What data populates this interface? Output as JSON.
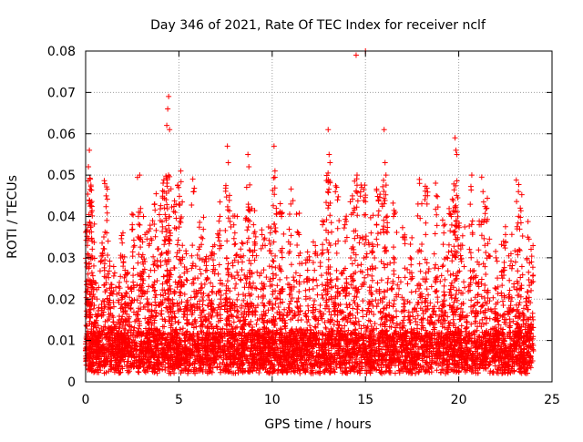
{
  "chart_data": {
    "type": "scatter",
    "title": "Day 346 of 2021, Rate Of TEC Index for receiver nclf",
    "xlabel": "GPS time / hours",
    "ylabel": "ROTI / TECUs",
    "xlim": [
      0,
      25
    ],
    "ylim": [
      0,
      0.08
    ],
    "x_ticks": [
      0,
      5,
      10,
      15,
      20,
      25
    ],
    "x_tick_labels": [
      "0",
      "5",
      "10",
      "15",
      "20",
      "25"
    ],
    "y_ticks": [
      0,
      0.01,
      0.02,
      0.03,
      0.04,
      0.05,
      0.06,
      0.07,
      0.08
    ],
    "y_tick_labels": [
      "0",
      "0.01",
      "0.02",
      "0.03",
      "0.04",
      "0.05",
      "0.06",
      "0.07",
      "0.08"
    ],
    "grid": true,
    "marker": "+",
    "series": [
      {
        "name": "ROTI",
        "color": "#ff0000",
        "points": [
          [
            0.1,
            0.033
          ],
          [
            0.15,
            0.052
          ],
          [
            0.2,
            0.056
          ],
          [
            0.25,
            0.049
          ],
          [
            0.3,
            0.041
          ],
          [
            0.35,
            0.034
          ],
          [
            0.5,
            0.024
          ],
          [
            0.7,
            0.018
          ],
          [
            0.9,
            0.031
          ],
          [
            1.1,
            0.045
          ],
          [
            1.3,
            0.028
          ],
          [
            1.5,
            0.022
          ],
          [
            1.8,
            0.015
          ],
          [
            2.0,
            0.036
          ],
          [
            2.2,
            0.026
          ],
          [
            2.5,
            0.038
          ],
          [
            2.9,
            0.05
          ],
          [
            3.1,
            0.04
          ],
          [
            3.4,
            0.033
          ],
          [
            3.7,
            0.043
          ],
          [
            4.0,
            0.039
          ],
          [
            4.2,
            0.046
          ],
          [
            4.35,
            0.062
          ],
          [
            4.4,
            0.066
          ],
          [
            4.45,
            0.069
          ],
          [
            4.5,
            0.061
          ],
          [
            4.8,
            0.041
          ],
          [
            5.0,
            0.043
          ],
          [
            5.1,
            0.051
          ],
          [
            5.4,
            0.031
          ],
          [
            5.8,
            0.046
          ],
          [
            6.2,
            0.035
          ],
          [
            6.5,
            0.027
          ],
          [
            6.8,
            0.031
          ],
          [
            7.2,
            0.04
          ],
          [
            7.6,
            0.057
          ],
          [
            7.65,
            0.053
          ],
          [
            8.0,
            0.036
          ],
          [
            8.4,
            0.029
          ],
          [
            8.7,
            0.055
          ],
          [
            8.75,
            0.052
          ],
          [
            9.0,
            0.038
          ],
          [
            9.5,
            0.033
          ],
          [
            9.9,
            0.036
          ],
          [
            10.1,
            0.057
          ],
          [
            10.15,
            0.051
          ],
          [
            10.5,
            0.04
          ],
          [
            11.0,
            0.043
          ],
          [
            11.4,
            0.036
          ],
          [
            11.9,
            0.027
          ],
          [
            12.3,
            0.031
          ],
          [
            12.7,
            0.038
          ],
          [
            13.0,
            0.061
          ],
          [
            13.05,
            0.055
          ],
          [
            13.1,
            0.053
          ],
          [
            13.5,
            0.044
          ],
          [
            13.9,
            0.038
          ],
          [
            14.3,
            0.045
          ],
          [
            14.5,
            0.079
          ],
          [
            14.55,
            0.05
          ],
          [
            14.8,
            0.047
          ],
          [
            15.0,
            0.08
          ],
          [
            15.3,
            0.036
          ],
          [
            15.7,
            0.044
          ],
          [
            16.0,
            0.061
          ],
          [
            16.05,
            0.053
          ],
          [
            16.1,
            0.05
          ],
          [
            16.6,
            0.041
          ],
          [
            17.0,
            0.035
          ],
          [
            17.4,
            0.03
          ],
          [
            17.9,
            0.048
          ],
          [
            18.3,
            0.043
          ],
          [
            18.8,
            0.045
          ],
          [
            19.2,
            0.036
          ],
          [
            19.6,
            0.04
          ],
          [
            19.8,
            0.059
          ],
          [
            19.85,
            0.056
          ],
          [
            19.9,
            0.055
          ],
          [
            20.2,
            0.033
          ],
          [
            20.7,
            0.05
          ],
          [
            21.1,
            0.038
          ],
          [
            21.3,
            0.046
          ],
          [
            21.5,
            0.042
          ],
          [
            22.0,
            0.03
          ],
          [
            22.4,
            0.034
          ],
          [
            22.8,
            0.031
          ],
          [
            23.2,
            0.046
          ],
          [
            23.3,
            0.042
          ],
          [
            23.7,
            0.035
          ],
          [
            23.9,
            0.029
          ]
        ]
      }
    ]
  }
}
